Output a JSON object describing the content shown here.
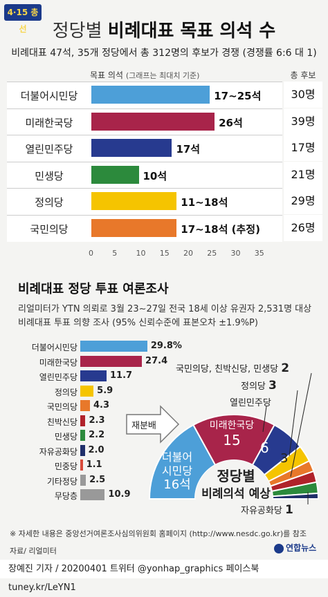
{
  "header": {
    "badge": "4·15 총선",
    "title_light": "정당별 ",
    "title_bold": "비례대표 목표 의석 수",
    "subtitle": "비례대표 47석, 35개 정당에서 총 312명의 후보가 경쟁 (경쟁률 6:6 대 1)"
  },
  "target_chart": {
    "col_header_left": "목표 의석",
    "col_header_note": "(그래프는 최대치 기준)",
    "col_header_right": "총 후보",
    "ticks": [
      "0",
      "5",
      "10",
      "15",
      "20",
      "25",
      "30",
      "35"
    ],
    "rows": [
      {
        "party": "더불어시민당",
        "label": "17∼25석",
        "max": 25,
        "color": "#4d9fd8",
        "cand": "30명"
      },
      {
        "party": "미래한국당",
        "label": "26석",
        "max": 26,
        "color": "#a8244a",
        "cand": "39명"
      },
      {
        "party": "열린민주당",
        "label": "17석",
        "max": 17,
        "color": "#273a8f",
        "cand": "17명"
      },
      {
        "party": "민생당",
        "label": "10석",
        "max": 10,
        "color": "#2c8a3c",
        "cand": "21명"
      },
      {
        "party": "정의당",
        "label": "11∼18석",
        "max": 18,
        "color": "#f5c400",
        "cand": "29명"
      },
      {
        "party": "국민의당",
        "label": "17∼18석 (추정)",
        "max": 18,
        "color": "#e8782a",
        "cand": "26명"
      }
    ]
  },
  "poll": {
    "title": "비례대표 정당 투표 여론조사",
    "line1": "리얼미터가 YTN 의뢰로 3월 23∼27일 전국 18세 이상 유권자 2,531명 대상",
    "line2": "비례대표 투표 의향 조사 (95% 신뢰수준에 표본오차 ±1.9%P)",
    "rows": [
      {
        "party": "더불어시민당",
        "value": 29.8,
        "label": "29.8%",
        "color": "#4d9fd8"
      },
      {
        "party": "미래한국당",
        "value": 27.4,
        "label": "27.4",
        "color": "#a8244a"
      },
      {
        "party": "열린민주당",
        "value": 11.7,
        "label": "11.7",
        "color": "#273a8f"
      },
      {
        "party": "정의당",
        "value": 5.9,
        "label": "5.9",
        "color": "#f5c400"
      },
      {
        "party": "국민의당",
        "value": 4.3,
        "label": "4.3",
        "color": "#e8782a"
      },
      {
        "party": "친박신당",
        "value": 2.3,
        "label": "2.3",
        "color": "#b0222a"
      },
      {
        "party": "민생당",
        "value": 2.2,
        "label": "2.2",
        "color": "#2c8a3c"
      },
      {
        "party": "자유공화당",
        "value": 2.0,
        "label": "2.0",
        "color": "#1f2f6a"
      },
      {
        "party": "민중당",
        "value": 1.1,
        "label": "1.1",
        "color": "#d84a3a"
      },
      {
        "party": "기타정당",
        "value": 2.5,
        "label": "2.5",
        "color": "#999999"
      },
      {
        "party": "무당층",
        "value": 10.9,
        "label": "10.9",
        "color": "#999999"
      }
    ]
  },
  "seat_chart": {
    "arrow_label": "재분배",
    "center_title1": "정당별",
    "center_title2": "비례의석 예상",
    "segments": [
      {
        "party": "더불어시민당",
        "seats": 16,
        "color": "#4d9fd8"
      },
      {
        "party": "미래한국당",
        "seats": 15,
        "color": "#a8244a"
      },
      {
        "party": "열린민주당",
        "seats": 6,
        "color": "#273a8f"
      },
      {
        "party": "정의당",
        "seats": 3,
        "color": "#f5c400"
      },
      {
        "party": "국민의당",
        "seats": 2,
        "color": "#e8782a"
      },
      {
        "party": "친박신당",
        "seats": 2,
        "color": "#b0222a"
      },
      {
        "party": "민생당",
        "seats": 2,
        "color": "#2c8a3c"
      },
      {
        "party": "자유공화당",
        "seats": 1,
        "color": "#1f2f6a"
      }
    ],
    "seg1_name1": "더불어",
    "seg1_name2": "시민당",
    "seg1_seats": "16석",
    "seg2_name": "미래한국당",
    "seg2_seats": "15",
    "seg3_seats": "6",
    "seg4_seats": "3",
    "callout_minor": "국민의당, 친박신당, 민생당",
    "callout_minor_num": "2",
    "callout_justice": "정의당",
    "callout_justice_num": "3",
    "callout_open": "열린민주당",
    "callout_freedom": "자유공화당",
    "callout_freedom_num": "1"
  },
  "note": "※ 자세한 내용은 중앙선거여론조사심의위원회 홈페이지 (http://www.nesdc.go.kr)를 참조",
  "source": "자료/ 리얼미터",
  "logo": "연합뉴스",
  "footer": "장예진 기자 / 20200401 트위터 @yonhap_graphics  페이스북 tuney.kr/LeYN1"
}
